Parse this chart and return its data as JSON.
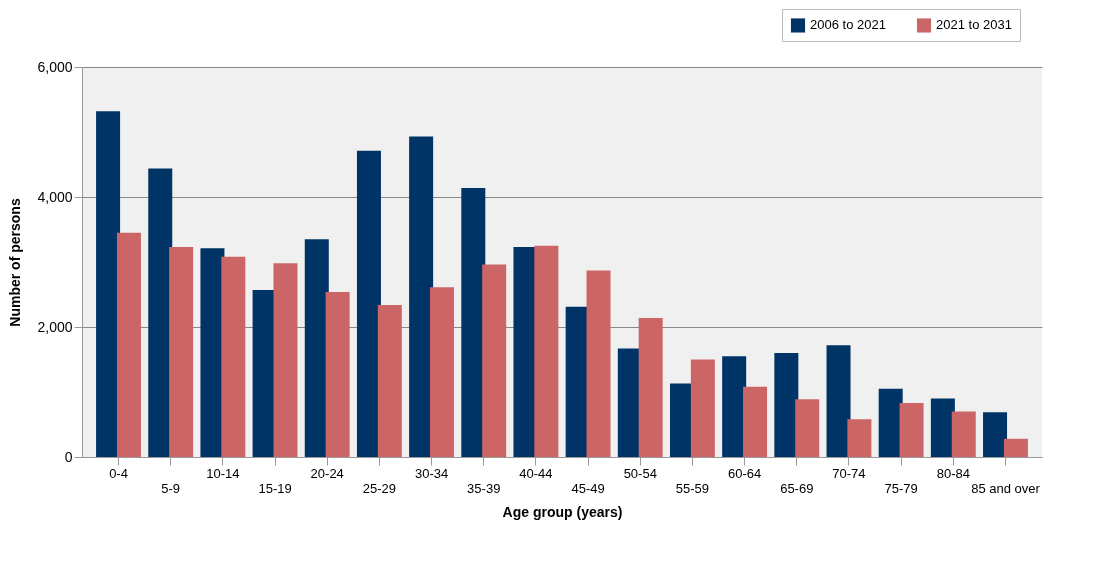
{
  "chart_data": {
    "type": "bar",
    "xlabel": "Age group (years)",
    "ylabel": "Number of persons",
    "categories": [
      "0-4",
      "5-9",
      "10-14",
      "15-19",
      "20-24",
      "25-29",
      "30-34",
      "35-39",
      "40-44",
      "45-49",
      "50-54",
      "55-59",
      "60-64",
      "65-69",
      "70-74",
      "75-79",
      "80-84",
      "85 and over"
    ],
    "series": [
      {
        "name": "2006 to 2021",
        "color": "#003366",
        "values": [
          5320,
          4440,
          3210,
          2570,
          3350,
          4710,
          4930,
          4140,
          3230,
          2310,
          1670,
          1130,
          1550,
          1600,
          1720,
          1050,
          900,
          690
        ]
      },
      {
        "name": "2021 to 2031",
        "color": "#cc6666",
        "values": [
          3450,
          3230,
          3080,
          2980,
          2540,
          2340,
          2610,
          2960,
          3250,
          2870,
          2140,
          1500,
          1080,
          890,
          580,
          830,
          700,
          280
        ]
      }
    ],
    "ylim": [
      0,
      6000
    ],
    "yticks": [
      {
        "value": 0,
        "label": "0"
      },
      {
        "value": 2000,
        "label": "2,000"
      },
      {
        "value": 4000,
        "label": "4,000"
      },
      {
        "value": 6000,
        "label": "6,000"
      }
    ],
    "grid": "y",
    "legend": "top right"
  }
}
